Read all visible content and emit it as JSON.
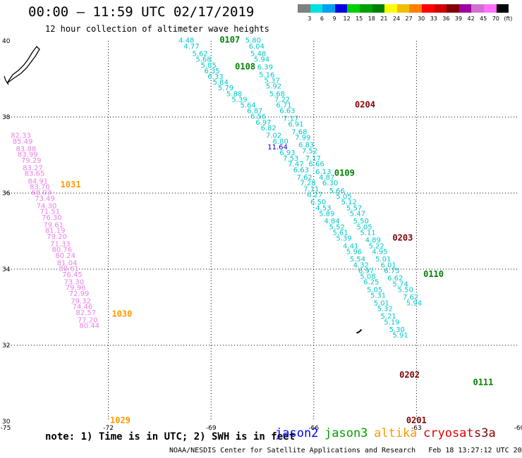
{
  "header": {
    "title": "00:00 – 11:59 UTC 02/17/2019",
    "subtitle": "12 hour collection of altimeter wave heights"
  },
  "legend_scale": {
    "labels": [
      "3",
      "6",
      "9",
      "12",
      "15",
      "18",
      "21",
      "24",
      "27",
      "30",
      "33",
      "36",
      "39",
      "42",
      "45",
      "70",
      "(ft)"
    ],
    "colors": [
      "#808080",
      "#00e0e0",
      "#00a0f0",
      "#0000e0",
      "#00d000",
      "#00a000",
      "#008000",
      "#ffff00",
      "#f0c000",
      "#ff8000",
      "#ff0000",
      "#d00000",
      "#800000",
      "#a000a0",
      "#d070d0",
      "#ff70ff",
      "#000000"
    ]
  },
  "footer": {
    "note": "note: 1) Time is in UTC; 2) SWH is in feet",
    "credit": "NOAA/NESDIS Center for Satellite Applications and Research   Feb 18 13:27:12 UTC 2019",
    "satellites": [
      {
        "name": "jason2",
        "color": "#0000ff"
      },
      {
        "name": "jason3",
        "color": "#00a000"
      },
      {
        "name": "altika",
        "color": "#ff9900"
      },
      {
        "name": "cryosat",
        "color": "#e00000"
      },
      {
        "name": "s3a",
        "color": "#800000"
      }
    ]
  },
  "chart_data": {
    "type": "scatter",
    "xlim": [
      -75,
      -60
    ],
    "ylim": [
      30,
      40
    ],
    "x_ticks": [
      "-75",
      "-72",
      "-69",
      "-66",
      "-63",
      "-60"
    ],
    "y_ticks": [
      "30",
      "32",
      "34",
      "36",
      "38",
      "40"
    ],
    "grid": true,
    "time_labels": [
      {
        "text": "0107",
        "lon": -68.75,
        "lat": 39.95,
        "color": "#008000"
      },
      {
        "text": "0108",
        "lon": -68.3,
        "lat": 39.25,
        "color": "#008000"
      },
      {
        "text": "0204",
        "lon": -64.8,
        "lat": 38.25,
        "color": "#800000"
      },
      {
        "text": "0109",
        "lon": -65.4,
        "lat": 36.45,
        "color": "#008000"
      },
      {
        "text": "1031",
        "lon": -73.4,
        "lat": 36.15,
        "color": "#ff9900"
      },
      {
        "text": "0203",
        "lon": -63.7,
        "lat": 34.75,
        "color": "#800000"
      },
      {
        "text": "0110",
        "lon": -62.8,
        "lat": 33.8,
        "color": "#008000"
      },
      {
        "text": "1030",
        "lon": -71.9,
        "lat": 32.75,
        "color": "#ff9900"
      },
      {
        "text": "0202",
        "lon": -63.5,
        "lat": 31.15,
        "color": "#800000"
      },
      {
        "text": "0111",
        "lon": -61.35,
        "lat": 30.95,
        "color": "#008000"
      },
      {
        "text": "1029",
        "lon": -71.95,
        "lat": 29.95,
        "color": "#ff9900"
      },
      {
        "text": "0201",
        "lon": -63.3,
        "lat": 29.95,
        "color": "#800000"
      }
    ],
    "series": [
      {
        "name": "0107-0111",
        "color": "#00c8c8",
        "points": [
          {
            "lon": -69.95,
            "lat": 39.95,
            "swh": "4.48"
          },
          {
            "lon": -69.8,
            "lat": 39.8,
            "swh": "4.77"
          },
          {
            "lon": -69.55,
            "lat": 39.6,
            "swh": "5.62"
          },
          {
            "lon": -69.45,
            "lat": 39.45,
            "swh": "5.68"
          },
          {
            "lon": -69.3,
            "lat": 39.3,
            "swh": "5.85"
          },
          {
            "lon": -69.2,
            "lat": 39.15,
            "swh": "6.35"
          },
          {
            "lon": -69.1,
            "lat": 39.0,
            "swh": "6.33"
          },
          {
            "lon": -68.95,
            "lat": 38.85,
            "swh": "5.84"
          },
          {
            "lon": -68.8,
            "lat": 38.7,
            "swh": "5.79"
          },
          {
            "lon": -68.55,
            "lat": 38.55,
            "swh": "5.88"
          },
          {
            "lon": -68.4,
            "lat": 38.4,
            "swh": "5.39"
          },
          {
            "lon": -68.15,
            "lat": 38.25,
            "swh": "5.64"
          },
          {
            "lon": -67.95,
            "lat": 38.1,
            "swh": "6.87"
          },
          {
            "lon": -67.85,
            "lat": 37.95,
            "swh": "6.56"
          },
          {
            "lon": -67.7,
            "lat": 37.8,
            "swh": "6.97"
          },
          {
            "lon": -67.55,
            "lat": 37.65,
            "swh": "6.82"
          },
          {
            "lon": -67.4,
            "lat": 37.45,
            "swh": "7.02"
          },
          {
            "lon": -67.2,
            "lat": 37.3,
            "swh": "6.80"
          },
          {
            "lon": -67.35,
            "lat": 37.15,
            "swh": "11.64",
            "color": "#0000e0"
          },
          {
            "lon": -67.0,
            "lat": 37.0,
            "swh": "6.93"
          },
          {
            "lon": -66.9,
            "lat": 36.85,
            "swh": "7.53"
          },
          {
            "lon": -66.75,
            "lat": 36.7,
            "swh": "7.47"
          },
          {
            "lon": -66.6,
            "lat": 36.55,
            "swh": "6.63"
          },
          {
            "lon": -66.5,
            "lat": 36.35,
            "swh": "7.62"
          },
          {
            "lon": -66.4,
            "lat": 36.2,
            "swh": "7.28"
          },
          {
            "lon": -66.3,
            "lat": 36.05,
            "swh": "7.11"
          },
          {
            "lon": -66.2,
            "lat": 35.9,
            "swh": "6.27"
          },
          {
            "lon": -66.1,
            "lat": 35.7,
            "swh": "6.50"
          },
          {
            "lon": -65.95,
            "lat": 35.55,
            "swh": "4.53"
          },
          {
            "lon": -65.85,
            "lat": 35.4,
            "swh": "5.89"
          },
          {
            "lon": -65.7,
            "lat": 35.2,
            "swh": "4.84"
          },
          {
            "lon": -65.55,
            "lat": 35.05,
            "swh": "5.52"
          },
          {
            "lon": -65.45,
            "lat": 34.9,
            "swh": "5.61"
          },
          {
            "lon": -65.35,
            "lat": 34.75,
            "swh": "5.39"
          },
          {
            "lon": -65.15,
            "lat": 34.55,
            "swh": "4.41"
          },
          {
            "lon": -65.05,
            "lat": 34.4,
            "swh": "5.96"
          },
          {
            "lon": -64.95,
            "lat": 34.2,
            "swh": "5.54"
          },
          {
            "lon": -64.85,
            "lat": 34.05,
            "swh": "4.32"
          },
          {
            "lon": -64.7,
            "lat": 33.9,
            "swh": "6.97"
          },
          {
            "lon": -64.65,
            "lat": 33.75,
            "swh": "5.08"
          },
          {
            "lon": -64.55,
            "lat": 33.6,
            "swh": "6.25"
          },
          {
            "lon": -64.45,
            "lat": 33.4,
            "swh": "5.05"
          },
          {
            "lon": -64.35,
            "lat": 33.25,
            "swh": "5.31"
          },
          {
            "lon": -64.25,
            "lat": 33.05,
            "swh": "5.01"
          },
          {
            "lon": -64.15,
            "lat": 32.9,
            "swh": "5.32"
          },
          {
            "lon": -64.05,
            "lat": 32.7,
            "swh": "5.21"
          },
          {
            "lon": -63.95,
            "lat": 32.55,
            "swh": "5.19"
          },
          {
            "lon": -63.8,
            "lat": 32.35,
            "swh": "5.30"
          },
          {
            "lon": -63.7,
            "lat": 32.2,
            "swh": "5.91"
          }
        ]
      },
      {
        "name": "0201-0204",
        "color": "#00c8c8",
        "points": [
          {
            "lon": -68.0,
            "lat": 39.95,
            "swh": "5.80"
          },
          {
            "lon": -67.9,
            "lat": 39.8,
            "swh": "6.04"
          },
          {
            "lon": -67.85,
            "lat": 39.6,
            "swh": "5.48"
          },
          {
            "lon": -67.75,
            "lat": 39.45,
            "swh": "5.94"
          },
          {
            "lon": -67.65,
            "lat": 39.25,
            "swh": "6.39"
          },
          {
            "lon": -67.6,
            "lat": 39.05,
            "swh": "5.16"
          },
          {
            "lon": -67.45,
            "lat": 38.9,
            "swh": "5.37"
          },
          {
            "lon": -67.4,
            "lat": 38.75,
            "swh": "5.92"
          },
          {
            "lon": -67.3,
            "lat": 38.55,
            "swh": "5.68"
          },
          {
            "lon": -67.15,
            "lat": 38.4,
            "swh": "7.22"
          },
          {
            "lon": -67.1,
            "lat": 38.25,
            "swh": "6.71"
          },
          {
            "lon": -67.0,
            "lat": 38.1,
            "swh": "6.63"
          },
          {
            "lon": -66.9,
            "lat": 37.9,
            "swh": "7.17"
          },
          {
            "lon": -66.75,
            "lat": 37.75,
            "swh": "6.91"
          },
          {
            "lon": -66.65,
            "lat": 37.55,
            "swh": "7.68"
          },
          {
            "lon": -66.55,
            "lat": 37.4,
            "swh": "7.99"
          },
          {
            "lon": -66.45,
            "lat": 37.2,
            "swh": "6.83"
          },
          {
            "lon": -66.35,
            "lat": 37.05,
            "swh": "7.52"
          },
          {
            "lon": -66.25,
            "lat": 36.85,
            "swh": "7.17"
          },
          {
            "lon": -66.15,
            "lat": 36.7,
            "swh": "6.66"
          },
          {
            "lon": -65.95,
            "lat": 36.5,
            "swh": "6.13"
          },
          {
            "lon": -65.85,
            "lat": 36.35,
            "swh": "4.87"
          },
          {
            "lon": -65.75,
            "lat": 36.2,
            "swh": "6.30"
          },
          {
            "lon": -65.55,
            "lat": 36.0,
            "swh": "5.66"
          },
          {
            "lon": -65.35,
            "lat": 35.85,
            "swh": "5.05"
          },
          {
            "lon": -65.2,
            "lat": 35.7,
            "swh": "5.12"
          },
          {
            "lon": -65.05,
            "lat": 35.55,
            "swh": "5.57"
          },
          {
            "lon": -64.95,
            "lat": 35.4,
            "swh": "5.47"
          },
          {
            "lon": -64.85,
            "lat": 35.2,
            "swh": "5.50"
          },
          {
            "lon": -64.75,
            "lat": 35.05,
            "swh": "5.05"
          },
          {
            "lon": -64.65,
            "lat": 34.9,
            "swh": "5.11"
          },
          {
            "lon": -64.5,
            "lat": 34.7,
            "swh": "4.89"
          },
          {
            "lon": -64.4,
            "lat": 34.55,
            "swh": "5.22"
          },
          {
            "lon": -64.3,
            "lat": 34.4,
            "swh": "4.95"
          },
          {
            "lon": -64.2,
            "lat": 34.2,
            "swh": "5.01"
          },
          {
            "lon": -64.05,
            "lat": 34.05,
            "swh": "6.01"
          },
          {
            "lon": -63.95,
            "lat": 33.9,
            "swh": "6.75"
          },
          {
            "lon": -63.85,
            "lat": 33.7,
            "swh": "6.62"
          },
          {
            "lon": -63.7,
            "lat": 33.55,
            "swh": "5.74"
          },
          {
            "lon": -63.55,
            "lat": 33.4,
            "swh": "5.50"
          },
          {
            "lon": -63.4,
            "lat": 33.2,
            "swh": "7.62"
          },
          {
            "lon": -63.3,
            "lat": 33.05,
            "swh": "5.94"
          }
        ]
      },
      {
        "name": "1029-1031",
        "color": "#e87fe8",
        "points": [
          {
            "lon": -74.85,
            "lat": 37.45,
            "swh": "82.33"
          },
          {
            "lon": -74.8,
            "lat": 37.3,
            "swh": "85.49"
          },
          {
            "lon": -74.7,
            "lat": 37.1,
            "swh": "83.88"
          },
          {
            "lon": -74.65,
            "lat": 36.95,
            "swh": "83.99"
          },
          {
            "lon": -74.55,
            "lat": 36.8,
            "swh": "79.29"
          },
          {
            "lon": -74.5,
            "lat": 36.6,
            "swh": "83.27"
          },
          {
            "lon": -74.45,
            "lat": 36.45,
            "swh": "83.65"
          },
          {
            "lon": -74.35,
            "lat": 36.25,
            "swh": "84.91"
          },
          {
            "lon": -74.3,
            "lat": 36.1,
            "swh": "83.70"
          },
          {
            "lon": -74.25,
            "lat": 35.95,
            "swh": "68.03"
          },
          {
            "lon": -74.15,
            "lat": 35.8,
            "swh": "73.49"
          },
          {
            "lon": -74.1,
            "lat": 35.6,
            "swh": "74.30"
          },
          {
            "lon": -74.0,
            "lat": 35.45,
            "swh": "71.51"
          },
          {
            "lon": -73.95,
            "lat": 35.3,
            "swh": "76.30"
          },
          {
            "lon": -73.9,
            "lat": 35.1,
            "swh": "79.61"
          },
          {
            "lon": -73.85,
            "lat": 34.95,
            "swh": "81.19"
          },
          {
            "lon": -73.8,
            "lat": 34.8,
            "swh": "79.20"
          },
          {
            "lon": -73.7,
            "lat": 34.6,
            "swh": "71.33"
          },
          {
            "lon": -73.65,
            "lat": 34.45,
            "swh": "80.76"
          },
          {
            "lon": -73.55,
            "lat": 34.3,
            "swh": "80.24"
          },
          {
            "lon": -73.5,
            "lat": 34.1,
            "swh": "81.04"
          },
          {
            "lon": -73.45,
            "lat": 33.95,
            "swh": "80.61"
          },
          {
            "lon": -73.35,
            "lat": 33.8,
            "swh": "76.45"
          },
          {
            "lon": -73.3,
            "lat": 33.6,
            "swh": "73.30"
          },
          {
            "lon": -73.25,
            "lat": 33.45,
            "swh": "79.96"
          },
          {
            "lon": -73.15,
            "lat": 33.3,
            "swh": "72.99"
          },
          {
            "lon": -73.1,
            "lat": 33.1,
            "swh": "79.32"
          },
          {
            "lon": -73.05,
            "lat": 32.95,
            "swh": "74.46"
          },
          {
            "lon": -72.95,
            "lat": 32.8,
            "swh": "82.57"
          },
          {
            "lon": -72.9,
            "lat": 32.6,
            "swh": "77.20"
          },
          {
            "lon": -72.85,
            "lat": 32.45,
            "swh": "80.44"
          }
        ]
      }
    ]
  }
}
